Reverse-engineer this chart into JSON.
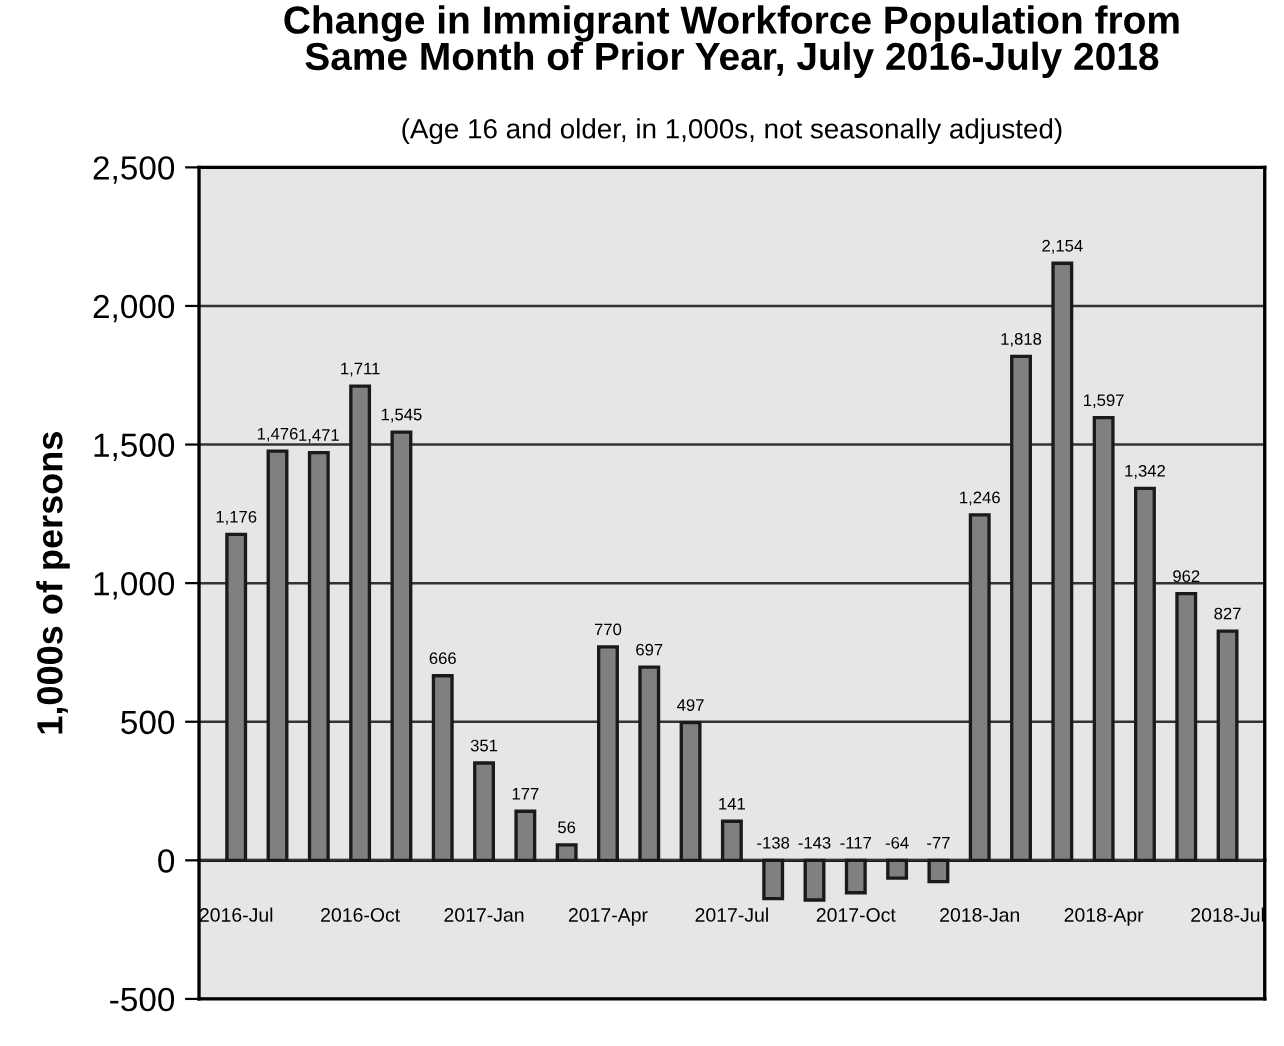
{
  "chart_data": {
    "type": "bar",
    "title": "Change in Immigrant Workforce Population from\nSame Month of Prior Year, July 2016-July 2018",
    "subtitle": "(Age 16 and older, in 1,000s, not seasonally adjusted)",
    "ylabel": "1,000s of persons",
    "categories": [
      "2016-Jul",
      null,
      null,
      "2016-Oct",
      null,
      null,
      "2017-Jan",
      null,
      null,
      "2017-Apr",
      null,
      null,
      "2017-Jul",
      null,
      null,
      "2017-Oct",
      null,
      null,
      "2018-Jan",
      null,
      null,
      "2018-Apr",
      null,
      null,
      "2018-Jul"
    ],
    "values": [
      1176,
      1476,
      1471,
      1711,
      1545,
      666,
      351,
      177,
      56,
      770,
      697,
      497,
      141,
      -138,
      -143,
      -117,
      -64,
      -77,
      1246,
      1818,
      2154,
      1597,
      1342,
      962,
      827
    ],
    "value_labels": [
      "1,176",
      "1,476",
      "1,471",
      "1,711",
      "1,545",
      "666",
      "351",
      "177",
      "56",
      "770",
      "697",
      "497",
      "141",
      "-138",
      "-143",
      "-117",
      "-64",
      "-77",
      "1,246",
      "1,818",
      "2,154",
      "1,597",
      "1,342",
      "962",
      "827"
    ],
    "color": "#808080",
    "ylim": [
      -500,
      2500
    ],
    "yticks": [
      {
        "value": -500,
        "label": "-500"
      },
      0,
      500,
      {
        "value": 1000,
        "label": "1,000"
      },
      {
        "value": 1500,
        "label": "1,500"
      },
      {
        "value": 2000,
        "label": "2,000"
      },
      {
        "value": 2500,
        "label": "2,500"
      }
    ],
    "grid": "y"
  }
}
